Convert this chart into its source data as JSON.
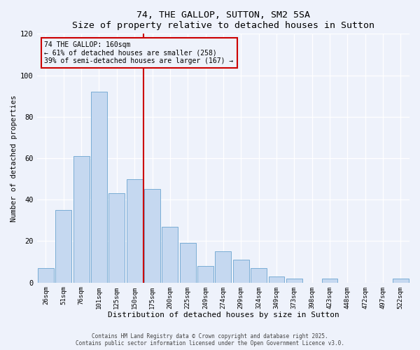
{
  "title": "74, THE GALLOP, SUTTON, SM2 5SA",
  "subtitle": "Size of property relative to detached houses in Sutton",
  "xlabel": "Distribution of detached houses by size in Sutton",
  "ylabel": "Number of detached properties",
  "bar_labels": [
    "26sqm",
    "51sqm",
    "76sqm",
    "101sqm",
    "125sqm",
    "150sqm",
    "175sqm",
    "200sqm",
    "225sqm",
    "249sqm",
    "274sqm",
    "299sqm",
    "324sqm",
    "349sqm",
    "373sqm",
    "398sqm",
    "423sqm",
    "448sqm",
    "472sqm",
    "497sqm",
    "522sqm"
  ],
  "bar_values": [
    7,
    35,
    61,
    92,
    43,
    50,
    45,
    27,
    19,
    8,
    15,
    11,
    7,
    3,
    2,
    0,
    2,
    0,
    0,
    0,
    2
  ],
  "bar_color": "#c5d8f0",
  "bar_edge_color": "#7aadd4",
  "background_color": "#eef2fb",
  "vline_x": 5.5,
  "vline_color": "#cc0000",
  "annotation_title": "74 THE GALLOP: 160sqm",
  "annotation_line1": "← 61% of detached houses are smaller (258)",
  "annotation_line2": "39% of semi-detached houses are larger (167) →",
  "annotation_box_color": "#cc0000",
  "ylim": [
    0,
    120
  ],
  "yticks": [
    0,
    20,
    40,
    60,
    80,
    100,
    120
  ],
  "footnote1": "Contains HM Land Registry data © Crown copyright and database right 2025.",
  "footnote2": "Contains public sector information licensed under the Open Government Licence v3.0."
}
